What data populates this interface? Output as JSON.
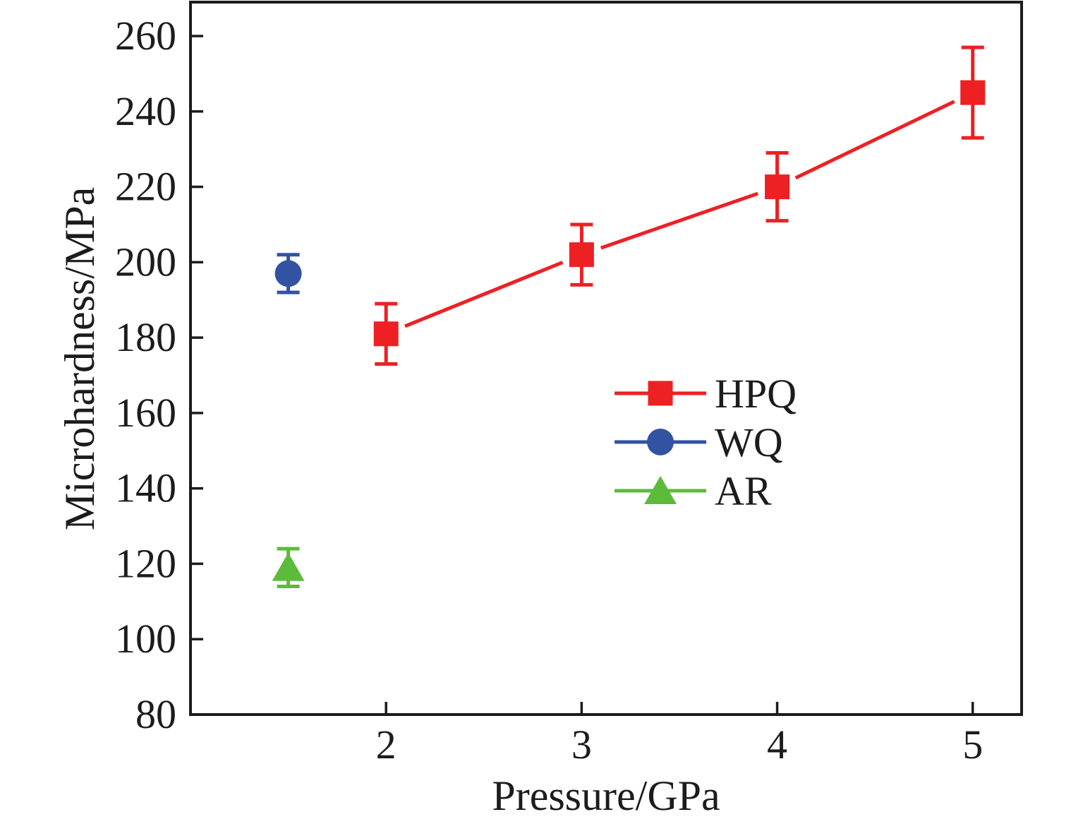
{
  "chart_data": {
    "type": "scatter",
    "title": "",
    "xlabel": "Pressure/GPa",
    "ylabel": "Microhardness/MPa",
    "xlim": [
      1.0,
      5.25
    ],
    "ylim": [
      80,
      269
    ],
    "x_ticks": [
      2,
      3,
      4,
      5
    ],
    "y_ticks": [
      80,
      100,
      120,
      140,
      160,
      180,
      200,
      220,
      240,
      260
    ],
    "grid": false,
    "axis_color": "#1c1c1c",
    "background_color": "#ffffff",
    "legend_position": "center-right",
    "legend_entries": [
      "HPQ",
      "WQ",
      "AR"
    ],
    "series": [
      {
        "name": "HPQ",
        "marker": "square",
        "color": "#ed2024",
        "line": true,
        "x": [
          2,
          3,
          4,
          5
        ],
        "y": [
          181,
          202,
          220,
          245
        ],
        "yerr": [
          8,
          8,
          9,
          12
        ]
      },
      {
        "name": "WQ",
        "marker": "circle",
        "color": "#3252a2",
        "line": false,
        "x": [
          1.5
        ],
        "y": [
          197
        ],
        "yerr": [
          5
        ]
      },
      {
        "name": "AR",
        "marker": "triangle",
        "color": "#5dbb3c",
        "line": false,
        "x": [
          1.5
        ],
        "y": [
          119
        ],
        "yerr": [
          5
        ]
      }
    ]
  }
}
